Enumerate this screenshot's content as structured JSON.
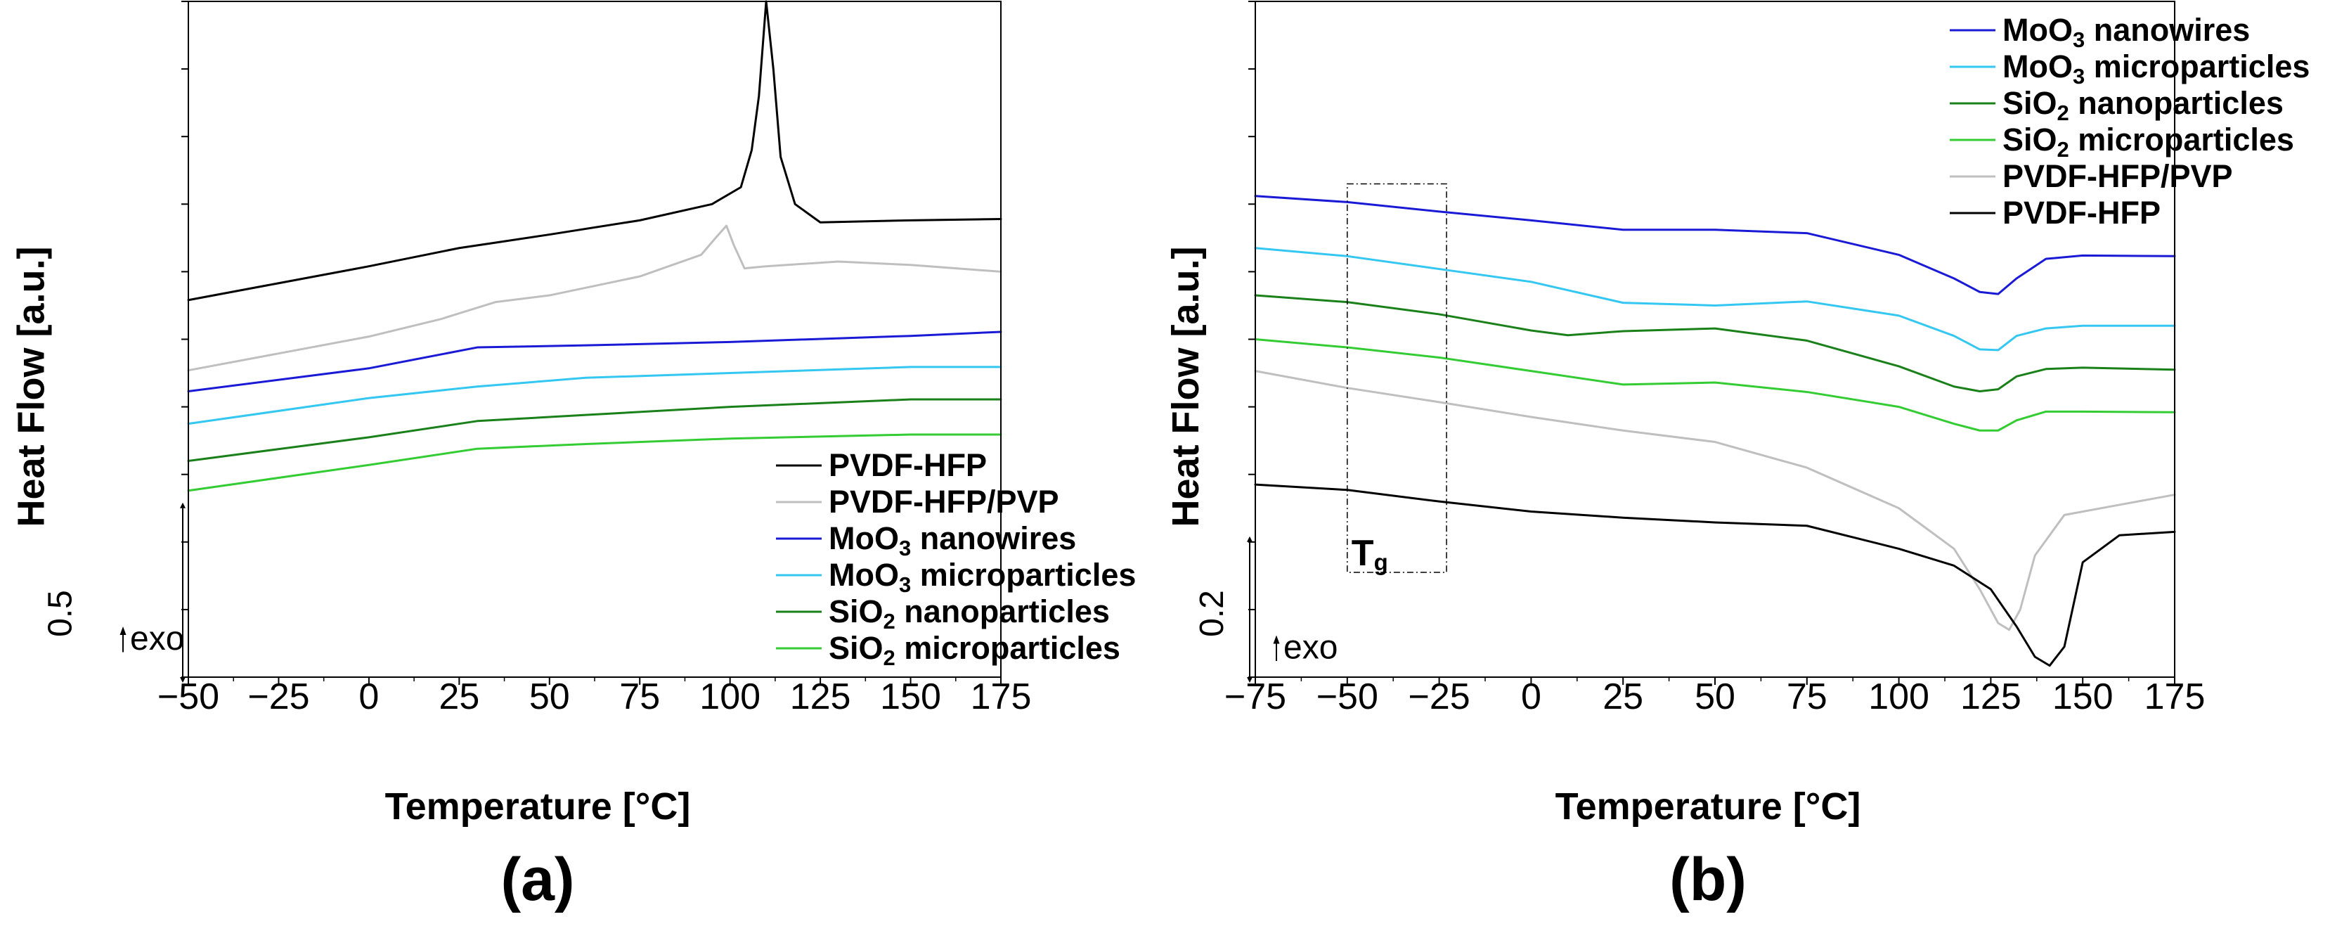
{
  "figure": {
    "panel_a_label": "(a)",
    "panel_b_label": "(b)"
  },
  "chart_data": [
    {
      "type": "line",
      "panel": "(a)",
      "xlabel": "Temperature [°C]",
      "ylabel": "Heat Flow [a.u.]",
      "xlim": [
        -50,
        175
      ],
      "xticks": [
        -50,
        -25,
        0,
        25,
        50,
        75,
        100,
        125,
        150,
        175
      ],
      "xtick_labels": [
        "−50",
        "−25",
        "0",
        "25",
        "50",
        "75",
        "100",
        "125",
        "150",
        "175"
      ],
      "ylim": [
        0,
        100
      ],
      "yticks": [
        0,
        10,
        20,
        30,
        40,
        50,
        60,
        70,
        80,
        90,
        100
      ],
      "scale_bar": {
        "label": "0.5",
        "from": 0,
        "to": 25
      },
      "exo_note": "exo",
      "legend_position": "bottom-right",
      "series": [
        {
          "name": "PVDF-HFP",
          "color": "#000000",
          "x": [
            -50,
            -25,
            0,
            25,
            35,
            50,
            75,
            95,
            103,
            106,
            108,
            110,
            112,
            114,
            118,
            125,
            150,
            175
          ],
          "y": [
            55.8,
            58.3,
            60.8,
            63.5,
            64.3,
            65.5,
            67.6,
            70.0,
            72.5,
            78.0,
            86.0,
            100.0,
            90.0,
            77.0,
            70.0,
            67.3,
            67.6,
            67.8
          ]
        },
        {
          "name": "PVDF-HFP/PVP",
          "color": "#bfbfbf",
          "x": [
            -50,
            -25,
            0,
            20,
            35,
            50,
            75,
            92,
            96,
            99,
            101,
            104,
            110,
            130,
            150,
            175
          ],
          "y": [
            45.4,
            47.9,
            50.4,
            53.0,
            55.5,
            56.5,
            59.3,
            62.5,
            65.0,
            66.8,
            64.0,
            60.5,
            60.8,
            61.5,
            61.0,
            60.0
          ]
        },
        {
          "name": "MoO3 nanowires",
          "color": "#1a1ad6",
          "x": [
            -50,
            0,
            30,
            60,
            100,
            150,
            175
          ],
          "y": [
            42.3,
            45.7,
            48.8,
            49.1,
            49.6,
            50.5,
            51.1
          ]
        },
        {
          "name": "MoO3 microparticles",
          "color": "#33c7f2",
          "x": [
            -50,
            0,
            30,
            60,
            100,
            150,
            175
          ],
          "y": [
            37.5,
            41.3,
            43.0,
            44.3,
            45.0,
            45.9,
            45.9
          ]
        },
        {
          "name": "SiO2 nanoparticles",
          "color": "#1a801a",
          "x": [
            -50,
            0,
            30,
            60,
            100,
            150,
            175
          ],
          "y": [
            32.0,
            35.5,
            37.9,
            38.8,
            40.0,
            41.1,
            41.1
          ]
        },
        {
          "name": "SiO2 microparticles",
          "color": "#33cc33",
          "x": [
            -50,
            0,
            30,
            60,
            100,
            150,
            175
          ],
          "y": [
            27.6,
            31.4,
            33.8,
            34.5,
            35.3,
            35.9,
            35.9
          ]
        }
      ]
    },
    {
      "type": "line",
      "panel": "(b)",
      "xlabel": "Temperature [°C]",
      "ylabel": "Heat Flow [a.u.]",
      "xlim": [
        -75,
        175
      ],
      "xticks": [
        -75,
        -50,
        -25,
        0,
        25,
        50,
        75,
        100,
        125,
        150,
        175
      ],
      "xtick_labels": [
        "−75",
        "−50",
        "−25",
        "0",
        "25",
        "50",
        "75",
        "100",
        "125",
        "150",
        "175"
      ],
      "ylim": [
        0,
        100
      ],
      "yticks": [
        0,
        10,
        20,
        30,
        40,
        50,
        60,
        70,
        80,
        90,
        100
      ],
      "scale_bar": {
        "label": "0.2",
        "from": 0,
        "to": 20
      },
      "exo_note": "exo",
      "annotation": {
        "label": "Tg",
        "label_main": "T",
        "label_sub": "g",
        "x_from": -50,
        "x_to": -23,
        "y_from": 15.5,
        "y_to": 73
      },
      "legend_position": "top-right",
      "series": [
        {
          "name": "MoO3 nanowires",
          "color": "#1a1ad6",
          "x": [
            -75,
            -50,
            -25,
            0,
            25,
            50,
            75,
            100,
            115,
            122,
            127,
            132,
            140,
            150,
            175
          ],
          "y": [
            71.2,
            70.3,
            68.9,
            67.6,
            66.2,
            66.2,
            65.7,
            62.5,
            59.0,
            57.0,
            56.7,
            59.0,
            61.9,
            62.4,
            62.3
          ]
        },
        {
          "name": "MoO3 microparticles",
          "color": "#33c7f2",
          "x": [
            -75,
            -50,
            -25,
            0,
            25,
            50,
            75,
            100,
            115,
            122,
            127,
            132,
            140,
            150,
            175
          ],
          "y": [
            63.5,
            62.3,
            60.4,
            58.5,
            55.4,
            55.0,
            55.6,
            53.5,
            50.5,
            48.5,
            48.4,
            50.5,
            51.6,
            52.0,
            52.0
          ]
        },
        {
          "name": "SiO2 nanoparticles",
          "color": "#1a801a",
          "x": [
            -75,
            -50,
            -25,
            0,
            10,
            25,
            50,
            75,
            100,
            115,
            122,
            127,
            132,
            140,
            150,
            175
          ],
          "y": [
            56.5,
            55.5,
            53.7,
            51.3,
            50.6,
            51.2,
            51.6,
            49.8,
            46.0,
            43.0,
            42.3,
            42.6,
            44.5,
            45.6,
            45.8,
            45.5
          ]
        },
        {
          "name": "SiO2 microparticles",
          "color": "#33cc33",
          "x": [
            -75,
            -50,
            -25,
            0,
            25,
            50,
            75,
            100,
            115,
            122,
            127,
            132,
            140,
            150,
            175
          ],
          "y": [
            50.0,
            48.8,
            47.3,
            45.3,
            43.3,
            43.6,
            42.2,
            40.0,
            37.5,
            36.5,
            36.5,
            38.0,
            39.3,
            39.3,
            39.2
          ]
        },
        {
          "name": "PVDF-HFP/PVP",
          "color": "#bfbfbf",
          "x": [
            -75,
            -50,
            -25,
            0,
            25,
            50,
            75,
            100,
            115,
            122,
            127,
            130,
            133,
            137,
            145,
            160,
            175
          ],
          "y": [
            45.3,
            42.8,
            40.7,
            38.5,
            36.5,
            34.8,
            31.0,
            25.0,
            19.0,
            13.0,
            8.0,
            7.0,
            10.0,
            18.0,
            24.0,
            25.5,
            27.0
          ]
        },
        {
          "name": "PVDF-HFP",
          "color": "#000000",
          "x": [
            -75,
            -50,
            -25,
            0,
            25,
            50,
            75,
            100,
            115,
            125,
            132,
            137,
            141,
            145,
            150,
            160,
            175
          ],
          "y": [
            28.5,
            27.7,
            26.0,
            24.5,
            23.6,
            22.9,
            22.4,
            19.0,
            16.5,
            13.0,
            7.5,
            3.0,
            1.7,
            4.5,
            17.0,
            21.0,
            21.5
          ]
        }
      ]
    }
  ]
}
